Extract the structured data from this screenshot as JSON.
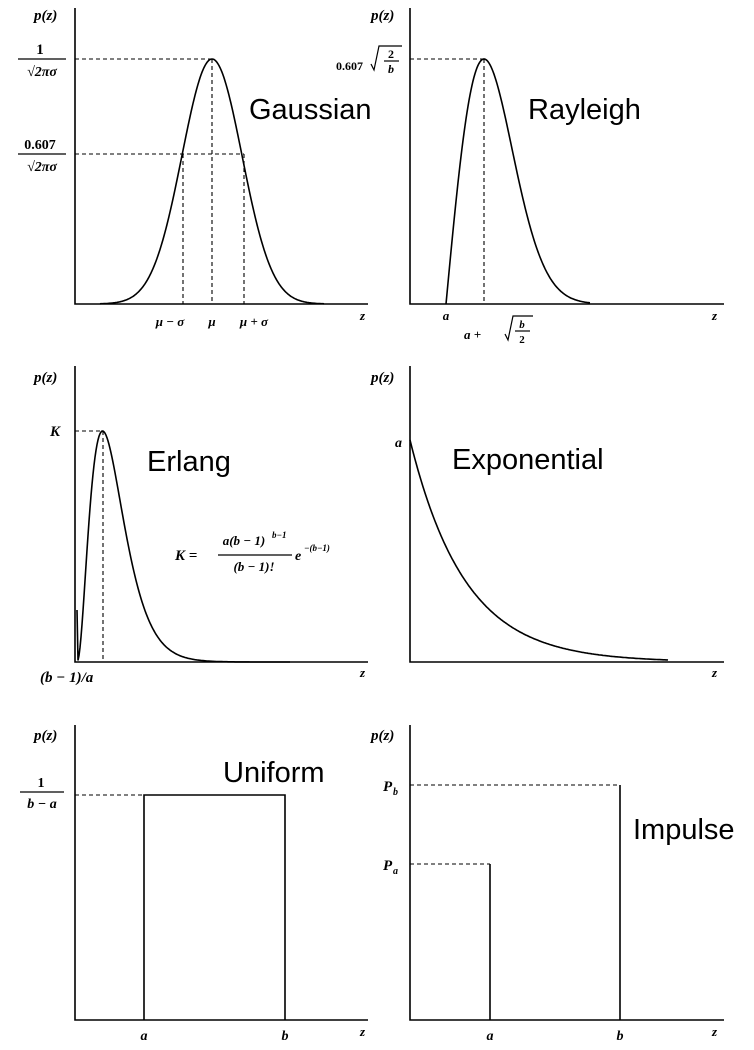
{
  "panels": {
    "gaussian": {
      "title": "Gaussian",
      "ylabel": "p(z)",
      "xlabel": "z",
      "peak_numerator": "1",
      "peak_denominator": "√2πσ",
      "half_numerator": "0.607",
      "half_denominator": "√2πσ",
      "tick_left": "μ − σ",
      "tick_mid": "μ",
      "tick_right": "μ + σ"
    },
    "rayleigh": {
      "title": "Rayleigh",
      "ylabel": "p(z)",
      "xlabel": "z",
      "peak_coef": "0.607",
      "peak_num": "2",
      "peak_den": "b",
      "tick_a": "a",
      "tick_peak_prefix": "a +",
      "tick_peak_num": "b",
      "tick_peak_den": "2"
    },
    "erlang": {
      "title": "Erlang",
      "ylabel": "p(z)",
      "xlabel": "z",
      "peak_label": "K",
      "tick_peak": "(b − 1)/a",
      "formula_lhs": "K =",
      "formula_num": "a(b − 1)",
      "formula_num_exp": "b−1",
      "formula_den": "(b − 1)!",
      "formula_e": "e",
      "formula_e_exp": "−(b−1)"
    },
    "exponential": {
      "title": "Exponential",
      "ylabel": "p(z)",
      "xlabel": "z",
      "peak_label": "a"
    },
    "uniform": {
      "title": "Uniform",
      "ylabel": "p(z)",
      "xlabel": "z",
      "height_num": "1",
      "height_den": "b − a",
      "tick_a": "a",
      "tick_b": "b"
    },
    "impulse": {
      "title": "Impulse",
      "ylabel": "p(z)",
      "xlabel": "z",
      "label_pb": "P",
      "label_pb_sub": "b",
      "label_pa": "P",
      "label_pa_sub": "a",
      "tick_a": "a",
      "tick_b": "b"
    }
  }
}
